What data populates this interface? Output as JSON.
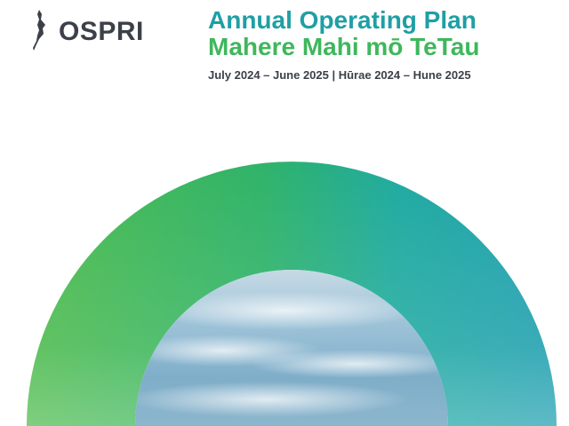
{
  "logo": {
    "text": "OSPRI",
    "icon": "new-zealand-map-icon",
    "color": "#3b4049"
  },
  "header": {
    "title_english": "Annual Operating Plan",
    "title_maori": "Mahere Mahi mō TeTau",
    "date_range": "July 2024 – June 2025 | Hūrae 2024 – Hune 2025"
  },
  "colors": {
    "title_english": "#1f9fa4",
    "title_maori": "#3fb75c",
    "text_dark": "#3b4049",
    "arch_green": "#5cbf4a",
    "arch_teal": "#1fa3aa"
  }
}
